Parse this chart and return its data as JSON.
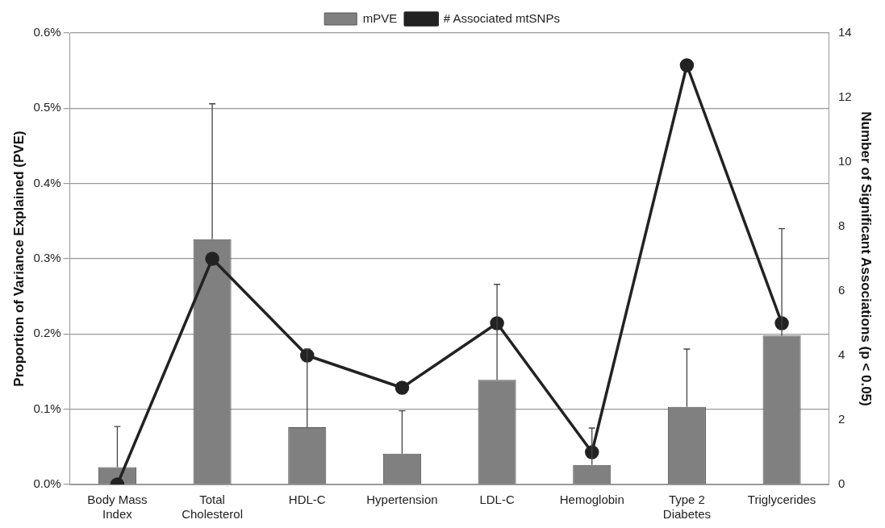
{
  "chart_data": {
    "type": "bar",
    "ylabel": "Proportion of Variance Explained (PVE)",
    "y2label": "Number of Significant Associations (p < 0.05)",
    "categories": [
      "Body Mass\nIndex",
      "Total\nCholesterol",
      "HDL-C",
      "Hypertension",
      "LDL-C",
      "Hemoglobin",
      "Type 2\nDiabetes",
      "Triglycerides"
    ],
    "series": [
      {
        "name": "mPVE",
        "color": "#808080",
        "values": [
          0.023,
          0.326,
          0.076,
          0.041,
          0.139,
          0.026,
          0.103,
          0.198
        ],
        "errors": [
          [
            0.023,
            0.077
          ],
          [
            0.326,
            0.506
          ],
          [
            0.076,
            0.18
          ],
          [
            0.041,
            0.098
          ],
          [
            0.139,
            0.266
          ],
          [
            0.026,
            0.075
          ],
          [
            0.103,
            0.18
          ],
          [
            0.198,
            0.34
          ]
        ]
      },
      {
        "name": "# Associated mtSNPs",
        "type": "line",
        "axis": "y2",
        "color": "#222222",
        "marker": "circle",
        "values": [
          0,
          7,
          4,
          3,
          5,
          1,
          13,
          5
        ]
      }
    ],
    "ylim": [
      0,
      0.6
    ],
    "yticks": [
      {
        "value": 0,
        "label": "0.0%"
      },
      {
        "value": 0.1,
        "label": "0.1%"
      },
      {
        "value": 0.2,
        "label": "0.2%"
      },
      {
        "value": 0.3,
        "label": "0.3%"
      },
      {
        "value": 0.4,
        "label": "0.4%"
      },
      {
        "value": 0.5,
        "label": "0.5%"
      },
      {
        "value": 0.6,
        "label": "0.6%"
      }
    ],
    "y2lim": [
      0,
      14
    ],
    "y2ticks": [
      0,
      2,
      4,
      6,
      8,
      10,
      12,
      14
    ],
    "grid": "y",
    "legend": "top"
  }
}
